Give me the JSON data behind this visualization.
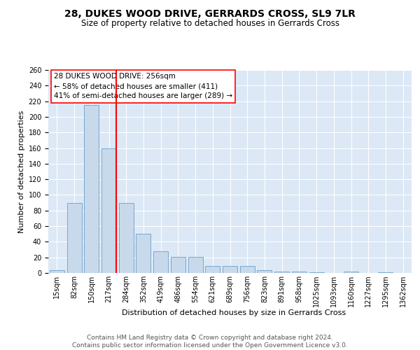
{
  "title": "28, DUKES WOOD DRIVE, GERRARDS CROSS, SL9 7LR",
  "subtitle": "Size of property relative to detached houses in Gerrards Cross",
  "xlabel": "Distribution of detached houses by size in Gerrards Cross",
  "ylabel": "Number of detached properties",
  "categories": [
    "15sqm",
    "82sqm",
    "150sqm",
    "217sqm",
    "284sqm",
    "352sqm",
    "419sqm",
    "486sqm",
    "554sqm",
    "621sqm",
    "689sqm",
    "756sqm",
    "823sqm",
    "891sqm",
    "958sqm",
    "1025sqm",
    "1093sqm",
    "1160sqm",
    "1227sqm",
    "1295sqm",
    "1362sqm"
  ],
  "values": [
    4,
    90,
    215,
    160,
    90,
    50,
    28,
    21,
    21,
    9,
    9,
    9,
    4,
    2,
    2,
    1,
    0,
    2,
    0,
    1,
    0
  ],
  "bar_color": "#c8d9ec",
  "bar_edge_color": "#6a9fc8",
  "vline_x_index": 3.42,
  "vline_color": "red",
  "annotation_text": "28 DUKES WOOD DRIVE: 256sqm\n← 58% of detached houses are smaller (411)\n41% of semi-detached houses are larger (289) →",
  "ylim_max": 260,
  "ytick_step": 20,
  "bg_color": "#dce8f5",
  "grid_color": "#ffffff",
  "footer": "Contains HM Land Registry data © Crown copyright and database right 2024.\nContains public sector information licensed under the Open Government Licence v3.0.",
  "title_fontsize": 10,
  "subtitle_fontsize": 8.5,
  "xlabel_fontsize": 8,
  "ylabel_fontsize": 8,
  "tick_fontsize": 7,
  "annotation_fontsize": 7.5,
  "footer_fontsize": 6.5
}
